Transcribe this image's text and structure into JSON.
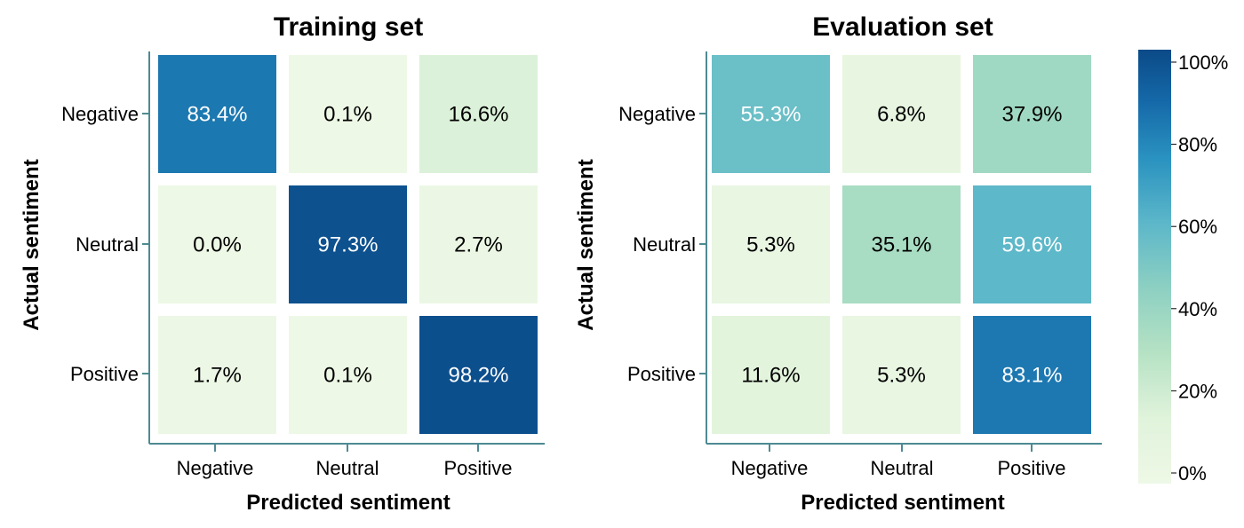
{
  "chart_data": [
    {
      "type": "heatmap",
      "title": "Training set",
      "xlabel": "Predicted sentiment",
      "ylabel": "Actual sentiment",
      "x_categories": [
        "Negative",
        "Neutral",
        "Positive"
      ],
      "y_categories": [
        "Negative",
        "Neutral",
        "Positive"
      ],
      "values": [
        [
          83.4,
          0.1,
          16.6
        ],
        [
          0.0,
          97.3,
          2.7
        ],
        [
          1.7,
          0.1,
          98.2
        ]
      ],
      "labels": [
        [
          "83.4%",
          "0.1%",
          "16.6%"
        ],
        [
          "0.0%",
          "97.3%",
          "2.7%"
        ],
        [
          "1.7%",
          "0.1%",
          "98.2%"
        ]
      ],
      "unit": "%"
    },
    {
      "type": "heatmap",
      "title": "Evaluation set",
      "xlabel": "Predicted sentiment",
      "ylabel": "Actual sentiment",
      "x_categories": [
        "Negative",
        "Neutral",
        "Positive"
      ],
      "y_categories": [
        "Negative",
        "Neutral",
        "Positive"
      ],
      "values": [
        [
          55.3,
          6.8,
          37.9
        ],
        [
          5.3,
          35.1,
          59.6
        ],
        [
          11.6,
          5.3,
          83.1
        ]
      ],
      "labels": [
        [
          "55.3%",
          "6.8%",
          "37.9%"
        ],
        [
          "5.3%",
          "35.1%",
          "59.6%"
        ],
        [
          "11.6%",
          "5.3%",
          "83.1%"
        ]
      ],
      "unit": "%"
    }
  ],
  "colorbar": {
    "range": [
      0,
      100
    ],
    "ticks": [
      0,
      20,
      40,
      60,
      80,
      100
    ],
    "tick_labels": [
      "0%",
      "20%",
      "40%",
      "60%",
      "80%",
      "100%"
    ],
    "colormap": "GnBu",
    "stops": [
      {
        "v": 0,
        "c": "#eef8e6"
      },
      {
        "v": 15,
        "c": "#e0f3db"
      },
      {
        "v": 30,
        "c": "#b6e2c4"
      },
      {
        "v": 45,
        "c": "#8dd0c2"
      },
      {
        "v": 60,
        "c": "#5cb7c9"
      },
      {
        "v": 75,
        "c": "#2a92c0"
      },
      {
        "v": 88,
        "c": "#1569a8"
      },
      {
        "v": 100,
        "c": "#0b4a88"
      }
    ]
  },
  "colors": {
    "axis": "#4e8a92",
    "text_dark": "#000000",
    "text_light": "#ffffff"
  }
}
